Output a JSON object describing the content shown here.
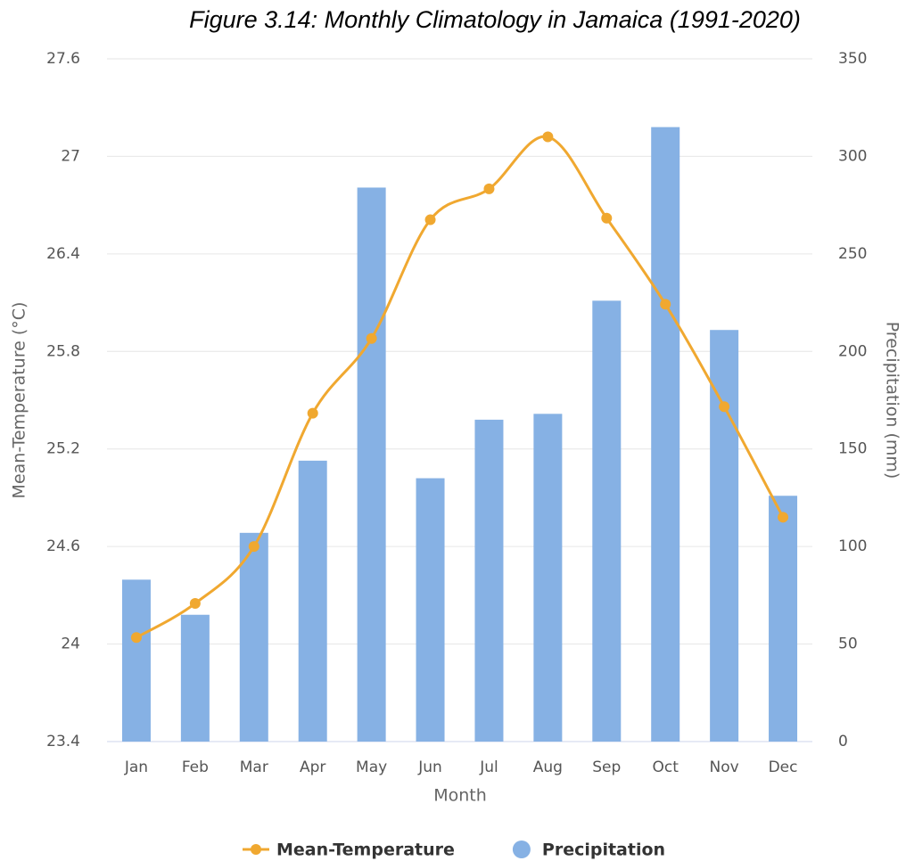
{
  "chart_data": {
    "type": "bar-line",
    "title": "Figure 3.14: Monthly Climatology in Jamaica (1991-2020)",
    "x_label": "Month",
    "y_label": "Mean-Temperature (°C)",
    "y2_label": "Precipitation (mm)",
    "categories": [
      "Jan",
      "Feb",
      "Mar",
      "Apr",
      "May",
      "Jun",
      "Jul",
      "Aug",
      "Sep",
      "Oct",
      "Nov",
      "Dec"
    ],
    "series": [
      {
        "name": "Mean-Temperature",
        "color": "#f0a830",
        "type": "line",
        "axis": "y",
        "values": [
          24.04,
          24.25,
          24.6,
          25.42,
          25.88,
          26.61,
          26.8,
          27.12,
          26.62,
          26.09,
          25.46,
          24.78
        ]
      },
      {
        "name": "Precipitation",
        "color": "#86b1e4",
        "type": "bar",
        "axis": "y2",
        "values": [
          83,
          65,
          107,
          144,
          284,
          135,
          165,
          168,
          226,
          315,
          211,
          126
        ]
      }
    ],
    "ylim": [
      23.4,
      27.6
    ],
    "yticks": [
      23.4,
      24,
      24.6,
      25.2,
      25.8,
      26.4,
      27,
      27.6
    ],
    "y2lim": [
      0,
      350
    ],
    "y2ticks": [
      0,
      50,
      100,
      150,
      200,
      250,
      300,
      350
    ],
    "grid": true,
    "legend": "bottom"
  }
}
